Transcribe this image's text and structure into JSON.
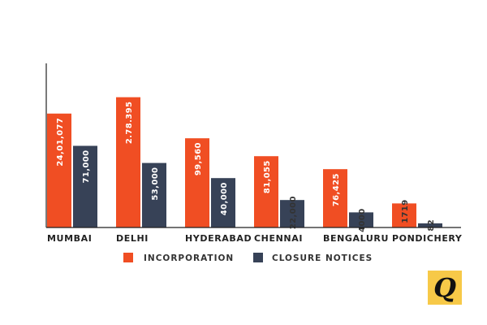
{
  "chart_data": {
    "type": "bar",
    "categories": [
      "MUMBAI",
      "DELHI",
      "HYDERABAD",
      "CHENNAI",
      "BENGALURU",
      "PONDICHERY"
    ],
    "series": [
      {
        "name": "INCORPORATION",
        "color": "#f04e23",
        "values": [
          2401077,
          278395,
          99560,
          81055,
          76425,
          1719
        ],
        "labels": [
          "24,01,077",
          "2.78.395",
          "99,560",
          "81,055",
          "76,425",
          "1719"
        ]
      },
      {
        "name": "CLOSURE NOTICES",
        "color": "#374257",
        "values": [
          71000,
          53000,
          40000,
          22000,
          4000,
          82
        ],
        "labels": [
          "71,000",
          "53,000",
          "40,000",
          "22,000",
          "4000",
          "82"
        ]
      }
    ],
    "title": "",
    "xlabel": "",
    "ylabel": "",
    "grid": false,
    "legend_position": "bottom-center",
    "axis_scale": "non-uniform (bar heights not proportional to values)",
    "relative_heights": {
      "INCORPORATION": [
        0.738,
        0.844,
        0.578,
        0.462,
        0.378,
        0.156
      ],
      "CLOSURE NOTICES": [
        0.529,
        0.418,
        0.32,
        0.178,
        0.098,
        0.027
      ]
    }
  },
  "logo": {
    "text": "Q",
    "name": "quint-logo"
  }
}
